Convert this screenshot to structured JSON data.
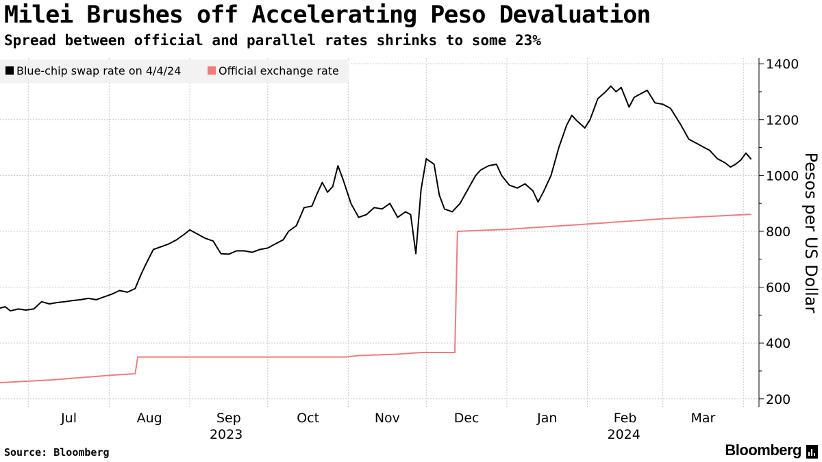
{
  "title": "Milei Brushes off Accelerating Peso Devaluation",
  "subtitle": "Spread between official and parallel rates shrinks to some 23%",
  "source": "Source: Bloomberg",
  "brand": "Bloomberg",
  "chart_data": {
    "type": "line",
    "ylabel": "Pesos per US Dollar",
    "ylim": [
      170,
      1420
    ],
    "yticks": [
      200,
      400,
      600,
      800,
      1000,
      1200,
      1400
    ],
    "grid": true,
    "legend_position": "top-left",
    "xlim": [
      "2023-06-20",
      "2024-04-07"
    ],
    "month_ticks": [
      {
        "label": "Jul",
        "date": "2023-07-01"
      },
      {
        "label": "Aug",
        "date": "2023-08-01"
      },
      {
        "label": "Sep",
        "date": "2023-09-01"
      },
      {
        "label": "Oct",
        "date": "2023-10-01"
      },
      {
        "label": "Nov",
        "date": "2023-11-01"
      },
      {
        "label": "Dec",
        "date": "2023-12-01"
      },
      {
        "label": "Jan",
        "date": "2024-01-01"
      },
      {
        "label": "Feb",
        "date": "2024-02-01"
      },
      {
        "label": "Mar",
        "date": "2024-03-01"
      }
    ],
    "year_labels": [
      {
        "label": "2023",
        "date": "2023-09-15"
      },
      {
        "label": "2024",
        "date": "2024-02-15"
      }
    ],
    "series": [
      {
        "name": "Blue-chip swap rate on 4/4/24",
        "color": "#000000",
        "points": [
          [
            "2023-06-20",
            525
          ],
          [
            "2023-06-22",
            530
          ],
          [
            "2023-06-24",
            515
          ],
          [
            "2023-06-27",
            522
          ],
          [
            "2023-06-30",
            518
          ],
          [
            "2023-07-03",
            522
          ],
          [
            "2023-07-06",
            548
          ],
          [
            "2023-07-09",
            540
          ],
          [
            "2023-07-12",
            545
          ],
          [
            "2023-07-15",
            548
          ],
          [
            "2023-07-18",
            552
          ],
          [
            "2023-07-21",
            555
          ],
          [
            "2023-07-24",
            560
          ],
          [
            "2023-07-27",
            555
          ],
          [
            "2023-07-30",
            565
          ],
          [
            "2023-08-02",
            575
          ],
          [
            "2023-08-05",
            588
          ],
          [
            "2023-08-08",
            582
          ],
          [
            "2023-08-11",
            595
          ],
          [
            "2023-08-13",
            640
          ],
          [
            "2023-08-15",
            680
          ],
          [
            "2023-08-18",
            735
          ],
          [
            "2023-08-21",
            745
          ],
          [
            "2023-08-24",
            755
          ],
          [
            "2023-08-27",
            770
          ],
          [
            "2023-08-30",
            790
          ],
          [
            "2023-09-01",
            805
          ],
          [
            "2023-09-04",
            790
          ],
          [
            "2023-09-07",
            775
          ],
          [
            "2023-09-10",
            765
          ],
          [
            "2023-09-13",
            720
          ],
          [
            "2023-09-16",
            718
          ],
          [
            "2023-09-19",
            730
          ],
          [
            "2023-09-22",
            730
          ],
          [
            "2023-09-25",
            725
          ],
          [
            "2023-09-28",
            735
          ],
          [
            "2023-10-01",
            740
          ],
          [
            "2023-10-04",
            755
          ],
          [
            "2023-10-07",
            770
          ],
          [
            "2023-10-09",
            800
          ],
          [
            "2023-10-12",
            820
          ],
          [
            "2023-10-15",
            885
          ],
          [
            "2023-10-18",
            890
          ],
          [
            "2023-10-20",
            935
          ],
          [
            "2023-10-22",
            975
          ],
          [
            "2023-10-24",
            940
          ],
          [
            "2023-10-26",
            960
          ],
          [
            "2023-10-28",
            1035
          ],
          [
            "2023-10-30",
            985
          ],
          [
            "2023-11-02",
            900
          ],
          [
            "2023-11-05",
            850
          ],
          [
            "2023-11-08",
            860
          ],
          [
            "2023-11-11",
            885
          ],
          [
            "2023-11-14",
            880
          ],
          [
            "2023-11-17",
            900
          ],
          [
            "2023-11-20",
            850
          ],
          [
            "2023-11-23",
            870
          ],
          [
            "2023-11-25",
            860
          ],
          [
            "2023-11-27",
            720
          ],
          [
            "2023-11-29",
            950
          ],
          [
            "2023-12-01",
            1060
          ],
          [
            "2023-12-04",
            1040
          ],
          [
            "2023-12-06",
            930
          ],
          [
            "2023-12-08",
            880
          ],
          [
            "2023-12-11",
            870
          ],
          [
            "2023-12-14",
            900
          ],
          [
            "2023-12-17",
            950
          ],
          [
            "2023-12-20",
            1000
          ],
          [
            "2023-12-22",
            1020
          ],
          [
            "2023-12-25",
            1035
          ],
          [
            "2023-12-28",
            1040
          ],
          [
            "2023-12-30",
            1000
          ],
          [
            "2024-01-02",
            965
          ],
          [
            "2024-01-05",
            955
          ],
          [
            "2024-01-08",
            970
          ],
          [
            "2024-01-11",
            945
          ],
          [
            "2024-01-13",
            905
          ],
          [
            "2024-01-15",
            940
          ],
          [
            "2024-01-18",
            1000
          ],
          [
            "2024-01-21",
            1100
          ],
          [
            "2024-01-24",
            1180
          ],
          [
            "2024-01-26",
            1215
          ],
          [
            "2024-01-28",
            1195
          ],
          [
            "2024-01-31",
            1170
          ],
          [
            "2024-02-02",
            1200
          ],
          [
            "2024-02-05",
            1275
          ],
          [
            "2024-02-08",
            1300
          ],
          [
            "2024-02-10",
            1320
          ],
          [
            "2024-02-12",
            1300
          ],
          [
            "2024-02-14",
            1315
          ],
          [
            "2024-02-17",
            1245
          ],
          [
            "2024-02-19",
            1280
          ],
          [
            "2024-02-22",
            1295
          ],
          [
            "2024-02-24",
            1305
          ],
          [
            "2024-02-27",
            1260
          ],
          [
            "2024-03-01",
            1255
          ],
          [
            "2024-03-04",
            1240
          ],
          [
            "2024-03-06",
            1210
          ],
          [
            "2024-03-08",
            1180
          ],
          [
            "2024-03-11",
            1130
          ],
          [
            "2024-03-14",
            1115
          ],
          [
            "2024-03-17",
            1100
          ],
          [
            "2024-03-19",
            1090
          ],
          [
            "2024-03-22",
            1060
          ],
          [
            "2024-03-25",
            1045
          ],
          [
            "2024-03-27",
            1030
          ],
          [
            "2024-03-29",
            1040
          ],
          [
            "2024-03-31",
            1055
          ],
          [
            "2024-04-02",
            1080
          ],
          [
            "2024-04-04",
            1058
          ]
        ]
      },
      {
        "name": "Official exchange rate",
        "color": "#f07c7c",
        "points": [
          [
            "2023-06-20",
            258
          ],
          [
            "2023-07-10",
            268
          ],
          [
            "2023-08-02",
            285
          ],
          [
            "2023-08-11",
            290
          ],
          [
            "2023-08-12",
            350
          ],
          [
            "2023-10-31",
            350
          ],
          [
            "2023-11-05",
            355
          ],
          [
            "2023-11-20",
            360
          ],
          [
            "2023-11-29",
            366
          ],
          [
            "2023-12-12",
            366
          ],
          [
            "2023-12-13",
            800
          ],
          [
            "2024-01-01",
            807
          ],
          [
            "2024-02-01",
            826
          ],
          [
            "2024-03-01",
            845
          ],
          [
            "2024-04-04",
            861
          ]
        ]
      }
    ]
  }
}
